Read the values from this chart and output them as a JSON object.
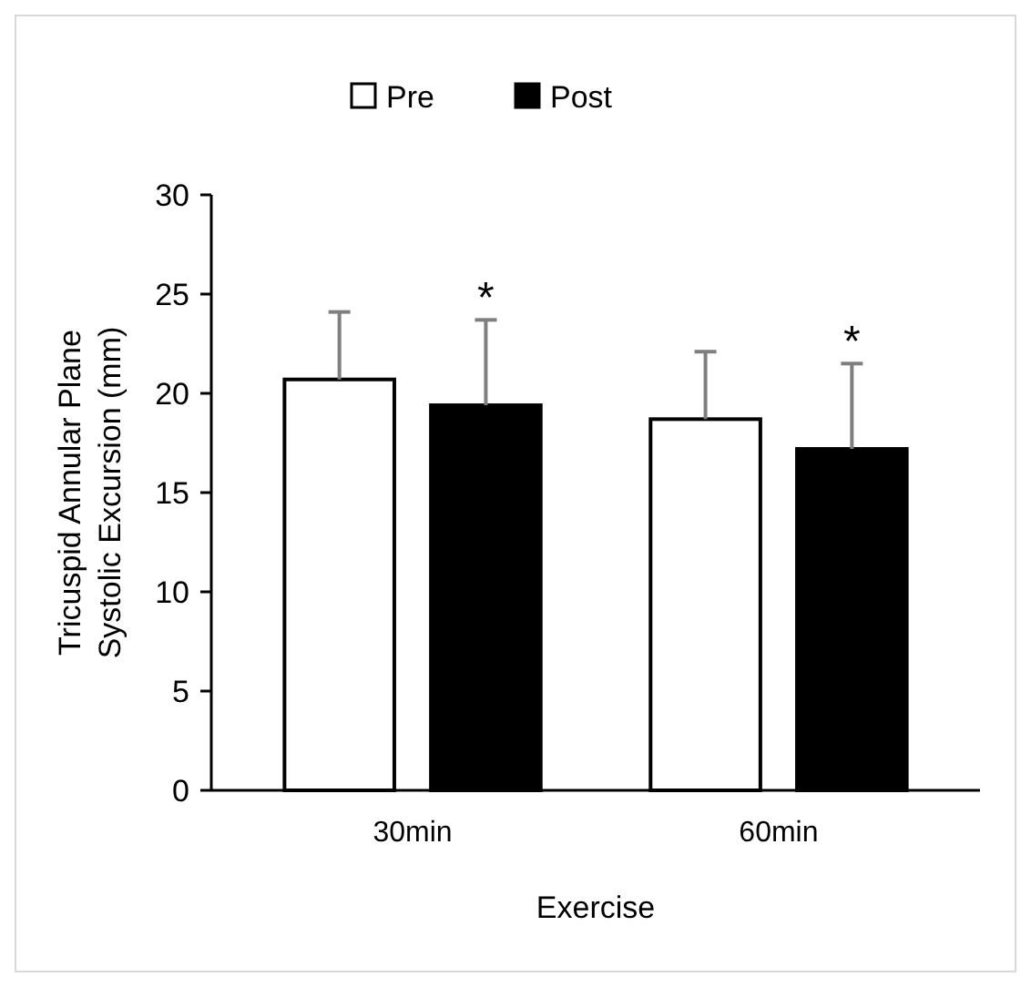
{
  "chart_data": {
    "type": "bar",
    "xlabel": "Exercise",
    "ylabel": "Tricuspid Annular Plane Systolic Excursion (mm)",
    "categories": [
      "30min",
      "60min"
    ],
    "series": [
      {
        "name": "Pre",
        "color": "#ffffff",
        "values": [
          20.7,
          18.7
        ],
        "errors": [
          [
            20.7,
            24.1
          ],
          [
            18.7,
            22.1
          ]
        ]
      },
      {
        "name": "Post",
        "color": "#000000",
        "values": [
          19.4,
          17.2
        ],
        "errors": [
          [
            19.4,
            23.7
          ],
          [
            17.2,
            21.5
          ]
        ]
      }
    ],
    "ylim": [
      0,
      30
    ],
    "yticks": [
      0,
      5,
      10,
      15,
      20,
      25,
      30
    ],
    "grid": false,
    "legend": "top",
    "annotations": [
      "*",
      "*"
    ]
  }
}
